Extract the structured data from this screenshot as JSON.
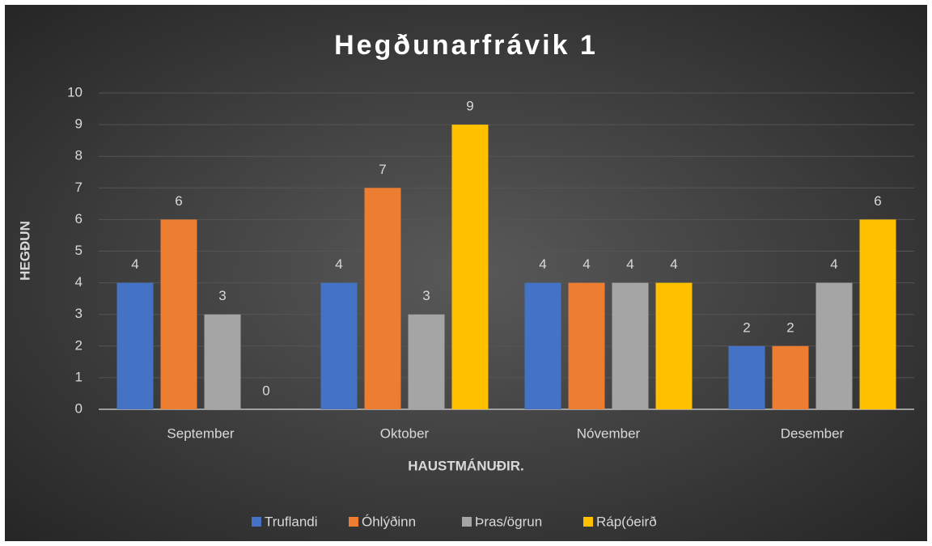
{
  "chart_data": {
    "type": "bar",
    "title": "Hegðunarfrávik 1",
    "x_label": "HAUSTMÁNUÐIR.",
    "y_label": "HEGÐUN",
    "categories": [
      "September",
      "Oktober",
      "Nóvember",
      "Desember"
    ],
    "series": [
      {
        "name": "Truflandi",
        "color": "#4472c4",
        "values": [
          4,
          4,
          4,
          2
        ]
      },
      {
        "name": "Óhlýðinn",
        "color": "#ed7d31",
        "values": [
          6,
          7,
          4,
          2
        ]
      },
      {
        "name": "Þras/ögrun",
        "color": "#a5a5a5",
        "values": [
          3,
          3,
          4,
          4
        ]
      },
      {
        "name": "Ráp(óeirð",
        "color": "#ffc000",
        "values": [
          0,
          9,
          4,
          6
        ]
      }
    ],
    "ylim": [
      0,
      10
    ],
    "yticks": [
      0,
      1,
      2,
      3,
      4,
      5,
      6,
      7,
      8,
      9,
      10
    ],
    "grid": true,
    "legend": "bottom"
  }
}
